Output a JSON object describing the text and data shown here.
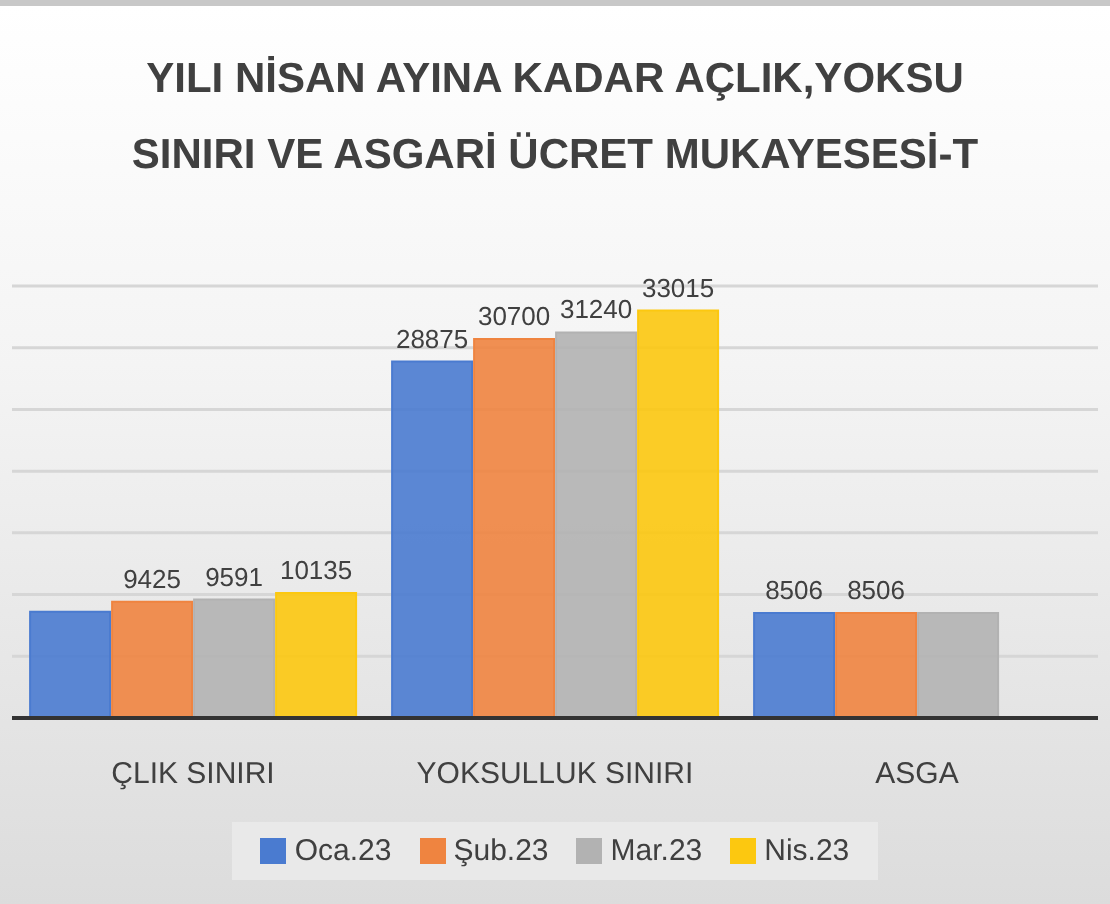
{
  "chart_data": {
    "type": "bar",
    "title": "YILI NİSAN AYINA KADAR AÇLIK,YOKSU\nSINIRI VE ASGARİ ÜCRET MUKAYESESİ-T",
    "categories": [
      "ÇLIK SINIRI",
      "YOKSULLUK SINIRI",
      "ASGA"
    ],
    "series": [
      {
        "name": "Oca.23",
        "color": "#4a7bd0",
        "values": [
          8600,
          28875,
          8506
        ],
        "value_labels": [
          null,
          "28875",
          "8506"
        ]
      },
      {
        "name": "Şub.23",
        "color": "#ef8440",
        "values": [
          9425,
          30700,
          8506
        ],
        "value_labels": [
          "9425",
          "30700",
          "8506"
        ]
      },
      {
        "name": "Mar.23",
        "color": "#b2b2b2",
        "values": [
          9591,
          31240,
          8500
        ],
        "value_labels": [
          "9591",
          "31240",
          null
        ]
      },
      {
        "name": "Nis.23",
        "color": "#fcc810",
        "values": [
          10135,
          33015,
          null
        ],
        "value_labels": [
          "10135",
          "33015",
          null
        ]
      }
    ],
    "ylim": [
      0,
      35000
    ],
    "yticks": [
      {
        "value": 0,
        "label": null
      },
      {
        "value": 5000,
        "label": null
      },
      {
        "value": 10000,
        "label": null
      },
      {
        "value": 15000,
        "label": null
      },
      {
        "value": 20000,
        "label": null
      },
      {
        "value": 25000,
        "label": null
      },
      {
        "value": 30000,
        "label": null
      },
      {
        "value": 35000,
        "label": null
      }
    ],
    "tick_labels": "x",
    "grid": "y",
    "legend": "bottom"
  }
}
